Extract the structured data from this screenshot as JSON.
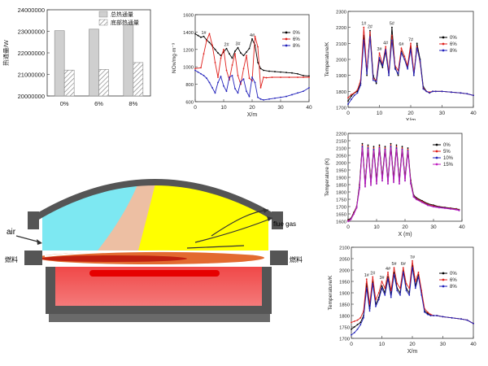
{
  "furnace": {
    "air_label": "air",
    "fuel_label": "燃料",
    "flue_gas_label": "flue gas",
    "colors": {
      "cyan": "#7de8f2",
      "peach": "#edbfa3",
      "yellow": "#ffff00",
      "flame": "#d94020",
      "melt": "#f04848",
      "melt_core": "#e60000",
      "wall": "#555555"
    }
  },
  "chart_data": [
    {
      "id": "heat-flux",
      "type": "bar",
      "categories": [
        "0%",
        "6%",
        "8%"
      ],
      "series": [
        {
          "name": "总热通量",
          "values": [
            23030000,
            23100000,
            23320000
          ],
          "fill": "#cfcfcf"
        },
        {
          "name": "底部热通量",
          "values": [
            21200000,
            21230000,
            21550000
          ],
          "fill": "hatch"
        }
      ],
      "ylabel": "热通量/W",
      "ylim": [
        20000000,
        24000000
      ],
      "yticks": [
        20000000,
        21000000,
        22000000,
        23000000,
        24000000
      ],
      "legend": "top-right"
    },
    {
      "id": "nox",
      "type": "line",
      "xlabel": "X/m",
      "ylabel": "NOx/mg·m⁻³",
      "xlim": [
        0,
        40
      ],
      "ylim": [
        600,
        1600
      ],
      "xticks": [
        0,
        10,
        20,
        30,
        40
      ],
      "yticks": [
        600,
        800,
        1000,
        1200,
        1400,
        1600
      ],
      "legend": "top-right",
      "annotations": [
        "1#",
        "2#",
        "3#",
        "4#",
        "5#",
        "6#"
      ],
      "series": [
        {
          "name": "0%",
          "color": "#000000",
          "x": [
            0,
            1,
            2,
            3,
            4,
            5,
            6,
            7,
            8,
            9,
            10,
            11,
            12,
            13,
            14,
            15,
            16,
            17,
            18,
            19,
            20,
            21,
            22,
            23,
            24,
            26,
            28,
            30,
            32,
            34,
            36,
            38,
            40
          ],
          "y": [
            1380,
            1360,
            1340,
            1350,
            1310,
            1280,
            1240,
            1200,
            1160,
            1130,
            1170,
            1210,
            1150,
            1100,
            1180,
            1220,
            1160,
            1130,
            1170,
            1210,
            1320,
            1250,
            1050,
            980,
            960,
            950,
            945,
            940,
            935,
            930,
            920,
            900,
            895
          ]
        },
        {
          "name": "6%",
          "color": "#e0201c",
          "x": [
            0,
            2,
            3,
            4,
            5,
            6,
            7,
            8,
            9,
            10,
            11,
            12,
            13,
            14,
            15,
            16,
            17,
            18,
            19,
            20,
            21,
            22,
            23,
            24,
            25,
            27,
            30,
            33,
            36,
            38,
            40
          ],
          "y": [
            980,
            990,
            1150,
            1300,
            1380,
            1250,
            1050,
            880,
            1100,
            1200,
            960,
            850,
            1020,
            1150,
            900,
            800,
            980,
            1130,
            870,
            840,
            1350,
            1230,
            760,
            880,
            875,
            880,
            880,
            880,
            880,
            880,
            880
          ]
        },
        {
          "name": "8%",
          "color": "#2222bb",
          "x": [
            0,
            1,
            2,
            3,
            4,
            5,
            6,
            7,
            8,
            9,
            10,
            11,
            12,
            13,
            14,
            15,
            16,
            17,
            18,
            19,
            20,
            21,
            22,
            23,
            24,
            26,
            28,
            30,
            32,
            34,
            36,
            38,
            40
          ],
          "y": [
            960,
            940,
            920,
            900,
            870,
            820,
            760,
            700,
            820,
            890,
            780,
            720,
            880,
            900,
            750,
            700,
            830,
            860,
            720,
            660,
            880,
            820,
            650,
            630,
            620,
            630,
            640,
            650,
            660,
            680,
            700,
            720,
            760
          ]
        }
      ]
    },
    {
      "id": "temp-top",
      "type": "line",
      "xlabel": "X/m",
      "ylabel": "Temperature/K",
      "xlim": [
        0,
        40
      ],
      "ylim": [
        1700,
        2300
      ],
      "xticks": [
        0,
        10,
        20,
        30,
        40
      ],
      "yticks": [
        1700,
        1800,
        1900,
        2000,
        2100,
        2200,
        2300
      ],
      "legend": "right",
      "annotations": [
        "1#",
        "2#",
        "3#",
        "4#",
        "5#",
        "6#",
        "7#"
      ],
      "series": [
        {
          "name": "0%",
          "color": "#000000",
          "x": [
            0,
            1,
            2,
            3,
            4,
            5,
            6,
            7,
            8,
            9,
            10,
            11,
            12,
            13,
            14,
            15,
            16,
            17,
            18,
            19,
            20,
            21,
            22,
            23,
            24,
            25,
            26,
            27,
            28,
            30,
            33,
            36,
            38,
            40
          ],
          "y": [
            1740,
            1770,
            1790,
            1800,
            1850,
            2150,
            1900,
            2180,
            1900,
            1850,
            2000,
            1950,
            2050,
            1900,
            2200,
            1950,
            1900,
            2050,
            2000,
            1950,
            2080,
            1900,
            2100,
            2000,
            1830,
            1800,
            1790,
            1800,
            1800,
            1800,
            1795,
            1790,
            1785,
            1775
          ]
        },
        {
          "name": "6%",
          "color": "#e0201c",
          "x": [
            0,
            1,
            2,
            3,
            4,
            5,
            6,
            7,
            8,
            9,
            10,
            11,
            12,
            13,
            14,
            15,
            16,
            17,
            18,
            19,
            20,
            21,
            22,
            23,
            24,
            25,
            26,
            27,
            28,
            30,
            33,
            36,
            38,
            40
          ],
          "y": [
            1760,
            1780,
            1790,
            1810,
            1870,
            2200,
            1930,
            2170,
            1880,
            1870,
            2040,
            1970,
            2080,
            1920,
            2150,
            1960,
            1930,
            2070,
            2020,
            1960,
            2100,
            1920,
            2080,
            1980,
            1820,
            1800,
            1795,
            1800,
            1800,
            1800,
            1795,
            1790,
            1785,
            1775
          ]
        },
        {
          "name": "8%",
          "color": "#2222bb",
          "x": [
            0,
            1,
            2,
            3,
            4,
            5,
            6,
            7,
            8,
            9,
            10,
            11,
            12,
            13,
            14,
            15,
            16,
            17,
            18,
            19,
            20,
            21,
            22,
            23,
            24,
            25,
            26,
            27,
            28,
            30,
            33,
            36,
            38,
            40
          ],
          "y": [
            1720,
            1750,
            1775,
            1790,
            1840,
            2120,
            1910,
            2140,
            1870,
            1860,
            2010,
            1960,
            2060,
            1900,
            2120,
            1940,
            1910,
            2040,
            2000,
            1940,
            2060,
            1900,
            2070,
            1990,
            1815,
            1800,
            1790,
            1800,
            1800,
            1800,
            1795,
            1790,
            1785,
            1775
          ]
        }
      ]
    },
    {
      "id": "temp-mid",
      "type": "line",
      "xlabel": "X (m)",
      "ylabel": "Temperature (K)",
      "xlim": [
        0,
        40
      ],
      "ylim": [
        1600,
        2200
      ],
      "xticks": [
        0,
        10,
        20,
        30,
        40
      ],
      "yticks": [
        1600,
        1650,
        1700,
        1750,
        1800,
        1850,
        1900,
        1950,
        2000,
        2050,
        2100,
        2150,
        2200
      ],
      "legend": "top-right",
      "series": [
        {
          "name": "0%",
          "color": "#000000",
          "x": [
            0,
            1,
            2,
            3,
            4,
            5,
            6,
            7,
            8,
            9,
            10,
            11,
            12,
            13,
            14,
            15,
            16,
            17,
            18,
            19,
            20,
            21,
            22,
            23,
            24,
            26,
            28,
            30,
            32,
            34,
            36,
            38,
            39
          ],
          "y": [
            1610,
            1620,
            1660,
            1700,
            1850,
            2130,
            1860,
            2120,
            1870,
            2110,
            1880,
            2120,
            1900,
            2110,
            1880,
            2130,
            1890,
            2120,
            1880,
            2110,
            1900,
            2100,
            1880,
            1780,
            1760,
            1740,
            1720,
            1710,
            1700,
            1695,
            1690,
            1685,
            1680
          ]
        },
        {
          "name": "5%",
          "color": "#e0201c",
          "x": [
            0,
            1,
            2,
            3,
            4,
            5,
            6,
            7,
            8,
            9,
            10,
            11,
            12,
            13,
            14,
            15,
            16,
            17,
            18,
            19,
            20,
            21,
            22,
            23,
            24,
            26,
            28,
            30,
            32,
            34,
            36,
            38,
            39
          ],
          "y": [
            1605,
            1618,
            1655,
            1700,
            1840,
            2120,
            1850,
            2110,
            1860,
            2100,
            1870,
            2110,
            1890,
            2100,
            1870,
            2120,
            1880,
            2110,
            1870,
            2100,
            1890,
            2090,
            1870,
            1775,
            1755,
            1735,
            1715,
            1705,
            1698,
            1692,
            1688,
            1683,
            1678
          ]
        },
        {
          "name": "10%",
          "color": "#2222bb",
          "x": [
            0,
            1,
            2,
            3,
            4,
            5,
            6,
            7,
            8,
            9,
            10,
            11,
            12,
            13,
            14,
            15,
            16,
            17,
            18,
            19,
            20,
            21,
            22,
            23,
            24,
            26,
            28,
            30,
            32,
            34,
            36,
            38,
            39
          ],
          "y": [
            1600,
            1615,
            1650,
            1695,
            1830,
            2110,
            1840,
            2100,
            1850,
            2090,
            1860,
            2100,
            1880,
            2090,
            1860,
            2110,
            1870,
            2100,
            1860,
            2090,
            1880,
            2080,
            1860,
            1770,
            1750,
            1730,
            1710,
            1700,
            1695,
            1690,
            1685,
            1680,
            1675
          ]
        },
        {
          "name": "15%",
          "color": "#c020c0",
          "x": [
            0,
            1,
            2,
            3,
            4,
            5,
            6,
            7,
            8,
            9,
            10,
            11,
            12,
            13,
            14,
            15,
            16,
            17,
            18,
            19,
            20,
            21,
            22,
            23,
            24,
            26,
            28,
            30,
            32,
            34,
            36,
            38,
            39
          ],
          "y": [
            1598,
            1612,
            1648,
            1690,
            1820,
            2100,
            1835,
            2090,
            1845,
            2080,
            1855,
            2095,
            1875,
            2085,
            1855,
            2100,
            1865,
            2090,
            1855,
            2085,
            1875,
            2075,
            1855,
            1765,
            1748,
            1728,
            1708,
            1698,
            1692,
            1688,
            1683,
            1678,
            1672
          ]
        }
      ]
    },
    {
      "id": "temp-bottom",
      "type": "line",
      "xlabel": "X/m",
      "ylabel": "Temperature/K",
      "xlim": [
        0,
        40
      ],
      "ylim": [
        1700,
        2100
      ],
      "xticks": [
        0,
        10,
        20,
        30,
        40
      ],
      "yticks": [
        1700,
        1750,
        1800,
        1850,
        1900,
        1950,
        2000,
        2050,
        2100
      ],
      "legend": "right",
      "annotations": [
        "1#",
        "2#",
        "3#",
        "4#",
        "5#",
        "6#",
        "7#"
      ],
      "series": [
        {
          "name": "0%",
          "color": "#000000",
          "x": [
            0,
            1,
            2,
            3,
            4,
            5,
            6,
            7,
            8,
            9,
            10,
            11,
            12,
            13,
            14,
            15,
            16,
            17,
            18,
            19,
            20,
            21,
            22,
            23,
            24,
            25,
            26,
            27,
            28,
            30,
            33,
            36,
            38,
            40
          ],
          "y": [
            1740,
            1750,
            1760,
            1770,
            1800,
            1940,
            1830,
            1950,
            1850,
            1880,
            1930,
            1900,
            1970,
            1890,
            1990,
            1920,
            1900,
            2000,
            1920,
            1900,
            2020,
            1930,
            1980,
            1900,
            1820,
            1810,
            1800,
            1800,
            1800,
            1795,
            1790,
            1785,
            1780,
            1765
          ]
        },
        {
          "name": "6%",
          "color": "#e0201c",
          "x": [
            0,
            1,
            2,
            3,
            4,
            5,
            6,
            7,
            8,
            9,
            10,
            11,
            12,
            13,
            14,
            15,
            16,
            17,
            18,
            19,
            20,
            21,
            22,
            23,
            24,
            25,
            26,
            27,
            28,
            30,
            33,
            36,
            38,
            40
          ],
          "y": [
            1770,
            1775,
            1780,
            1790,
            1820,
            1960,
            1850,
            1970,
            1870,
            1900,
            1950,
            1920,
            1990,
            1910,
            2010,
            1940,
            1920,
            2010,
            1940,
            1920,
            2040,
            1950,
            1990,
            1910,
            1830,
            1815,
            1805,
            1800,
            1800,
            1795,
            1790,
            1785,
            1780,
            1765
          ]
        },
        {
          "name": "8%",
          "color": "#2222bb",
          "x": [
            0,
            1,
            2,
            3,
            4,
            5,
            6,
            7,
            8,
            9,
            10,
            11,
            12,
            13,
            14,
            15,
            16,
            17,
            18,
            19,
            20,
            21,
            22,
            23,
            24,
            25,
            26,
            27,
            28,
            30,
            33,
            36,
            38,
            40
          ],
          "y": [
            1715,
            1725,
            1740,
            1760,
            1790,
            1920,
            1820,
            1940,
            1840,
            1870,
            1920,
            1890,
            1960,
            1880,
            1980,
            1910,
            1890,
            1990,
            1910,
            1890,
            2010,
            1920,
            1970,
            1890,
            1815,
            1805,
            1800,
            1800,
            1800,
            1795,
            1790,
            1785,
            1780,
            1765
          ]
        }
      ]
    }
  ]
}
